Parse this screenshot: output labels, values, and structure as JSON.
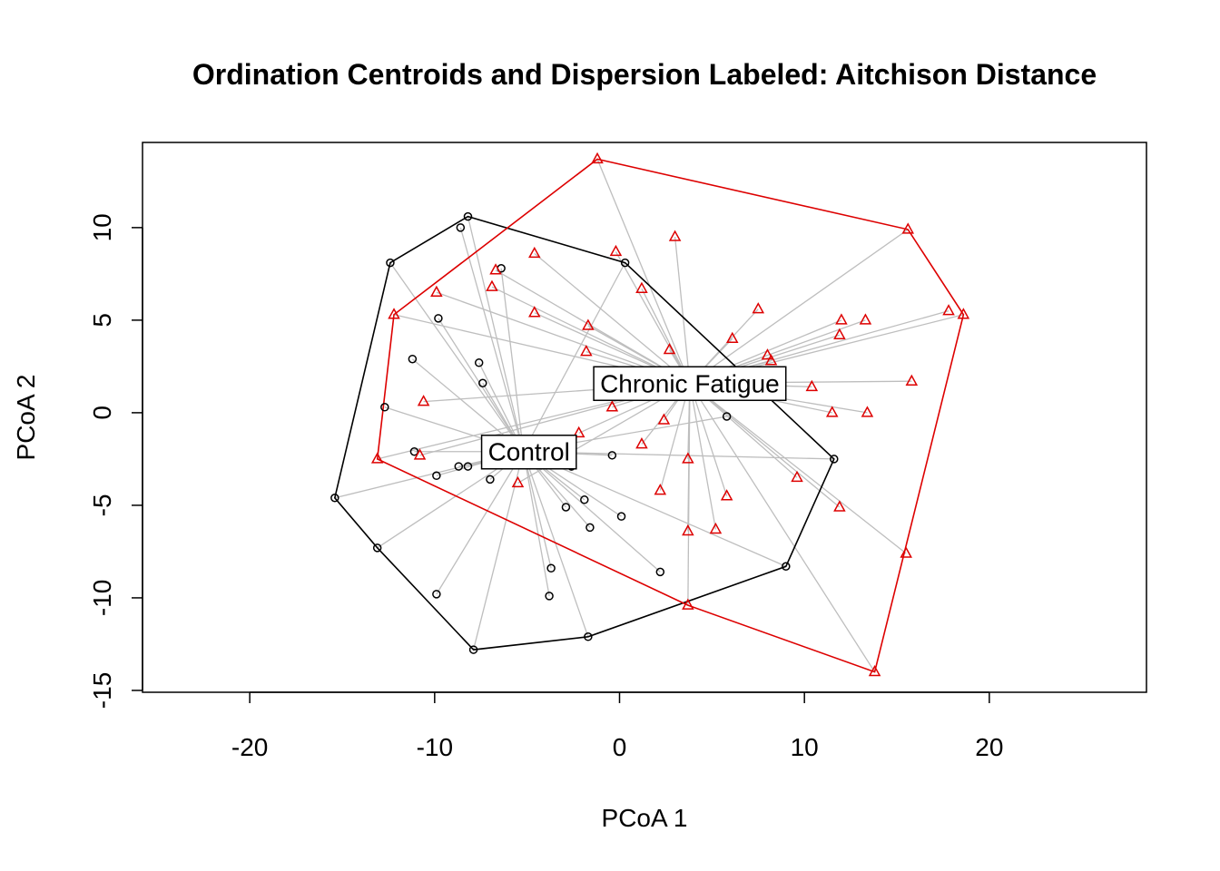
{
  "chart_data": {
    "type": "scatter",
    "title": "Ordination Centroids and Dispersion Labeled: Aitchison Distance",
    "xlabel": "PCoA 1",
    "ylabel": "PCoA 2",
    "xlim": [
      -25.8,
      28.5
    ],
    "ylim": [
      -15.1,
      14.6
    ],
    "x_ticks": [
      -20,
      -10,
      0,
      10,
      20
    ],
    "y_ticks": [
      -15,
      -10,
      -5,
      0,
      5,
      10
    ],
    "grid": false,
    "legend": "none",
    "colors": {
      "Control": "#000000",
      "Chronic Fatigue": "#dd0000",
      "spider": "#bebebe"
    },
    "series": [
      {
        "name": "Control",
        "marker": "circle",
        "centroid": [
          -5.2,
          -2.1
        ],
        "points": [
          [
            -8.2,
            10.6
          ],
          [
            -8.6,
            10.0
          ],
          [
            -12.4,
            8.1
          ],
          [
            -6.4,
            7.8
          ],
          [
            0.3,
            8.1
          ],
          [
            -9.8,
            5.1
          ],
          [
            -11.2,
            2.9
          ],
          [
            -7.6,
            2.7
          ],
          [
            -7.4,
            1.6
          ],
          [
            -12.7,
            0.3
          ],
          [
            5.8,
            -0.2
          ],
          [
            -11.1,
            -2.1
          ],
          [
            -8.7,
            -2.9
          ],
          [
            -8.2,
            -2.9
          ],
          [
            -2.6,
            -2.9
          ],
          [
            -0.4,
            -2.3
          ],
          [
            11.6,
            -2.5
          ],
          [
            -9.9,
            -3.4
          ],
          [
            -7.0,
            -3.6
          ],
          [
            -1.9,
            -4.7
          ],
          [
            -2.9,
            -5.1
          ],
          [
            0.1,
            -5.6
          ],
          [
            -1.6,
            -6.2
          ],
          [
            -15.4,
            -4.6
          ],
          [
            -13.1,
            -7.3
          ],
          [
            -3.7,
            -8.4
          ],
          [
            2.2,
            -8.6
          ],
          [
            -9.9,
            -9.8
          ],
          [
            -3.8,
            -9.9
          ],
          [
            9.0,
            -8.3
          ],
          [
            -1.7,
            -12.1
          ],
          [
            -7.9,
            -12.8
          ]
        ],
        "hull_order": [
          2,
          0,
          4,
          16,
          29,
          30,
          31,
          24,
          23
        ]
      },
      {
        "name": "Chronic Fatigue",
        "marker": "triangle",
        "centroid": [
          3.8,
          1.6
        ],
        "points": [
          [
            -1.2,
            13.7
          ],
          [
            15.6,
            9.9
          ],
          [
            3.0,
            9.5
          ],
          [
            -0.2,
            8.7
          ],
          [
            -4.6,
            8.6
          ],
          [
            -6.7,
            7.7
          ],
          [
            -6.9,
            6.8
          ],
          [
            1.2,
            6.7
          ],
          [
            -9.9,
            6.5
          ],
          [
            -12.2,
            5.3
          ],
          [
            -4.6,
            5.4
          ],
          [
            -1.7,
            4.7
          ],
          [
            7.5,
            5.6
          ],
          [
            12.0,
            5.0
          ],
          [
            13.3,
            5.0
          ],
          [
            17.8,
            5.5
          ],
          [
            18.6,
            5.3
          ],
          [
            6.1,
            4.0
          ],
          [
            11.9,
            4.2
          ],
          [
            2.7,
            3.4
          ],
          [
            -1.8,
            3.3
          ],
          [
            8.0,
            3.1
          ],
          [
            8.2,
            2.8
          ],
          [
            15.8,
            1.7
          ],
          [
            10.4,
            1.4
          ],
          [
            -10.6,
            0.6
          ],
          [
            -0.4,
            0.3
          ],
          [
            11.5,
            0.0
          ],
          [
            13.4,
            0.0
          ],
          [
            2.4,
            -0.4
          ],
          [
            -2.2,
            -1.1
          ],
          [
            1.2,
            -1.7
          ],
          [
            -10.8,
            -2.3
          ],
          [
            -13.1,
            -2.5
          ],
          [
            3.7,
            -2.5
          ],
          [
            9.6,
            -3.5
          ],
          [
            -5.5,
            -3.8
          ],
          [
            2.2,
            -4.2
          ],
          [
            5.8,
            -4.5
          ],
          [
            11.9,
            -5.1
          ],
          [
            5.2,
            -6.3
          ],
          [
            3.7,
            -6.4
          ],
          [
            15.5,
            -7.6
          ],
          [
            3.7,
            -10.4
          ],
          [
            13.8,
            -14.0
          ]
        ],
        "hull_order": [
          0,
          1,
          16,
          44,
          43,
          33,
          9
        ]
      }
    ],
    "annotations": [
      {
        "text": "Chronic Fatigue",
        "x": 3.8,
        "y": 1.6
      },
      {
        "text": "Control",
        "x": -4.9,
        "y": -2.1
      }
    ]
  }
}
